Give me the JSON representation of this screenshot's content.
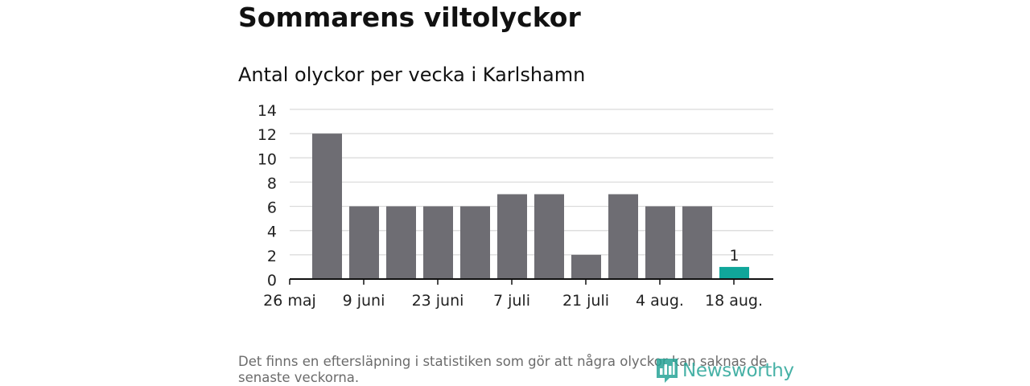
{
  "title": "Sommarens viltolyckor",
  "subtitle": "Antal olyckor per vecka i Karlshamn",
  "footnote": "Det finns en eftersläpning i statistiken som gör att några olyckor kan saknas de senaste veckorna.",
  "logo": {
    "text": "Newsworthy",
    "icon": "newsworthy-chart-icon"
  },
  "colors": {
    "bar": "#6e6d73",
    "highlight": "#10a69a",
    "grid": "#d9d9d9",
    "axis": "#111111"
  },
  "chart_data": {
    "type": "bar",
    "x_tick_labels": [
      "26 maj",
      "9 juni",
      "23 juni",
      "7 juli",
      "21 juli",
      "4 aug.",
      "18 aug."
    ],
    "values": [
      12,
      6,
      6,
      6,
      6,
      7,
      7,
      2,
      7,
      6,
      6,
      1
    ],
    "highlight_index": 11,
    "data_labels": [
      {
        "index": 11,
        "text": "1"
      }
    ],
    "ylim": [
      0,
      14
    ],
    "yticks": [
      0,
      2,
      4,
      6,
      8,
      10,
      12,
      14
    ],
    "grid": true
  }
}
